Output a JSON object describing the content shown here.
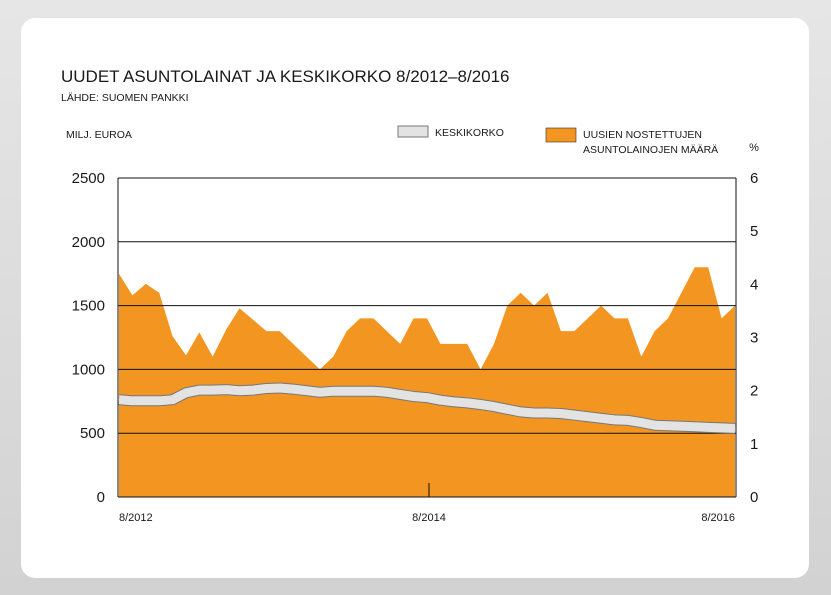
{
  "chart_data": {
    "type": "area",
    "title": "UUDET ASUNTOLAINAT JA KESKIKORKO 8/2012–8/2016",
    "subtitle": "LÄHDE: SUOMEN PANKKI",
    "ylabel_left": "MILJ. EUROA",
    "ylabel_right": "%",
    "x_tick_labels": [
      "8/2012",
      "8/2014",
      "8/2016"
    ],
    "y_left_ticks": [
      "0",
      "500",
      "1000",
      "1500",
      "2000",
      "2500"
    ],
    "y_right_ticks": [
      "0",
      "1",
      "2",
      "3",
      "4",
      "5",
      "6"
    ],
    "ylim_left": [
      0,
      2500
    ],
    "ylim_right": [
      0,
      6
    ],
    "grid": "horizontal",
    "colors": {
      "area": "#f39521",
      "rate_line": "#e3e3e3",
      "rate_outline": "#777777",
      "axis": "#111111"
    },
    "series": [
      {
        "name": "UUSIEN NOSTETTUJEN ASUNTOLAINOJEN MÄÄRÄ",
        "axis": "left",
        "type": "area",
        "values": [
          1750,
          1580,
          1670,
          1600,
          1260,
          1110,
          1290,
          1100,
          1310,
          1480,
          1390,
          1300,
          1300,
          1200,
          1100,
          1000,
          1100,
          1300,
          1400,
          1400,
          1300,
          1200,
          1400,
          1400,
          1200,
          1200,
          1200,
          1000,
          1200,
          1500,
          1600,
          1500,
          1600,
          1300,
          1300,
          1400,
          1500,
          1400,
          1400,
          1100,
          1300,
          1400,
          1600,
          1800,
          1800,
          1400,
          1500
        ]
      },
      {
        "name": "KESKIKORKO",
        "axis": "right",
        "type": "line",
        "values": [
          1.83,
          1.81,
          1.81,
          1.81,
          1.83,
          1.96,
          2.01,
          2.01,
          2.02,
          2.0,
          2.01,
          2.04,
          2.05,
          2.03,
          2.0,
          1.97,
          1.99,
          1.99,
          1.99,
          1.99,
          1.97,
          1.93,
          1.89,
          1.87,
          1.82,
          1.79,
          1.77,
          1.74,
          1.7,
          1.65,
          1.6,
          1.58,
          1.58,
          1.57,
          1.54,
          1.51,
          1.48,
          1.45,
          1.44,
          1.4,
          1.35,
          1.34,
          1.33,
          1.32,
          1.31,
          1.3,
          1.29
        ]
      }
    ],
    "legend": {
      "placement": "top-right",
      "rate_label": "KESKIKORKO",
      "area_label_line1": "UUSIEN NOSTETTUJEN",
      "area_label_line2": "ASUNTOLAINOJEN MÄÄRÄ"
    }
  }
}
